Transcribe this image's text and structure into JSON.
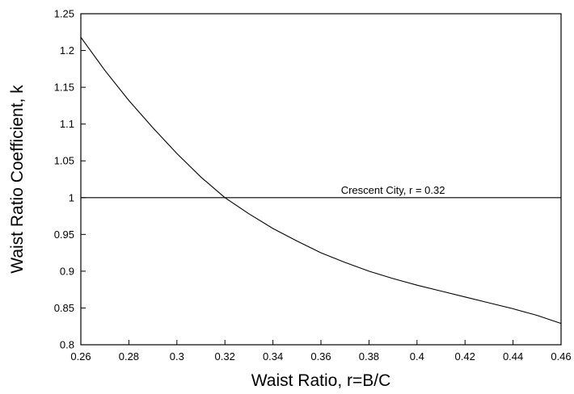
{
  "chart_data": {
    "type": "line",
    "xlabel": "Waist Ratio, r=B/C",
    "ylabel": "Waist Ratio Coefficient, k",
    "xlim": [
      0.26,
      0.46
    ],
    "ylim": [
      0.8,
      1.25
    ],
    "x_ticks": [
      0.26,
      0.28,
      0.3,
      0.32,
      0.34,
      0.36,
      0.38,
      0.4,
      0.42,
      0.44,
      0.46
    ],
    "x_tick_labels": [
      "0.26",
      "0.28",
      "0.3",
      "0.32",
      "0.34",
      "0.36",
      "0.38",
      "0.4",
      "0.42",
      "0.44",
      "0.46"
    ],
    "y_ticks": [
      0.8,
      0.85,
      0.9,
      0.95,
      1,
      1.05,
      1.1,
      1.15,
      1.2,
      1.25
    ],
    "y_tick_labels": [
      "0.8",
      "0.85",
      "0.9",
      "0.95",
      "1",
      "1.05",
      "1.1",
      "1.15",
      "1.2",
      "1.25"
    ],
    "grid": false,
    "series": [
      {
        "x": [
          0.26,
          0.27,
          0.28,
          0.29,
          0.3,
          0.31,
          0.32,
          0.33,
          0.34,
          0.35,
          0.36,
          0.37,
          0.38,
          0.39,
          0.4,
          0.41,
          0.42,
          0.43,
          0.44,
          0.45,
          0.46
        ],
        "y": [
          1.218,
          1.173,
          1.132,
          1.095,
          1.06,
          1.028,
          1.0,
          0.978,
          0.958,
          0.941,
          0.925,
          0.912,
          0.9,
          0.89,
          0.881,
          0.873,
          0.865,
          0.857,
          0.849,
          0.84,
          0.829
        ],
        "color": "#000000"
      }
    ],
    "reference_line": {
      "y": 1.0,
      "label": "Crescent City, r = 0.32",
      "label_x": 0.39
    }
  }
}
